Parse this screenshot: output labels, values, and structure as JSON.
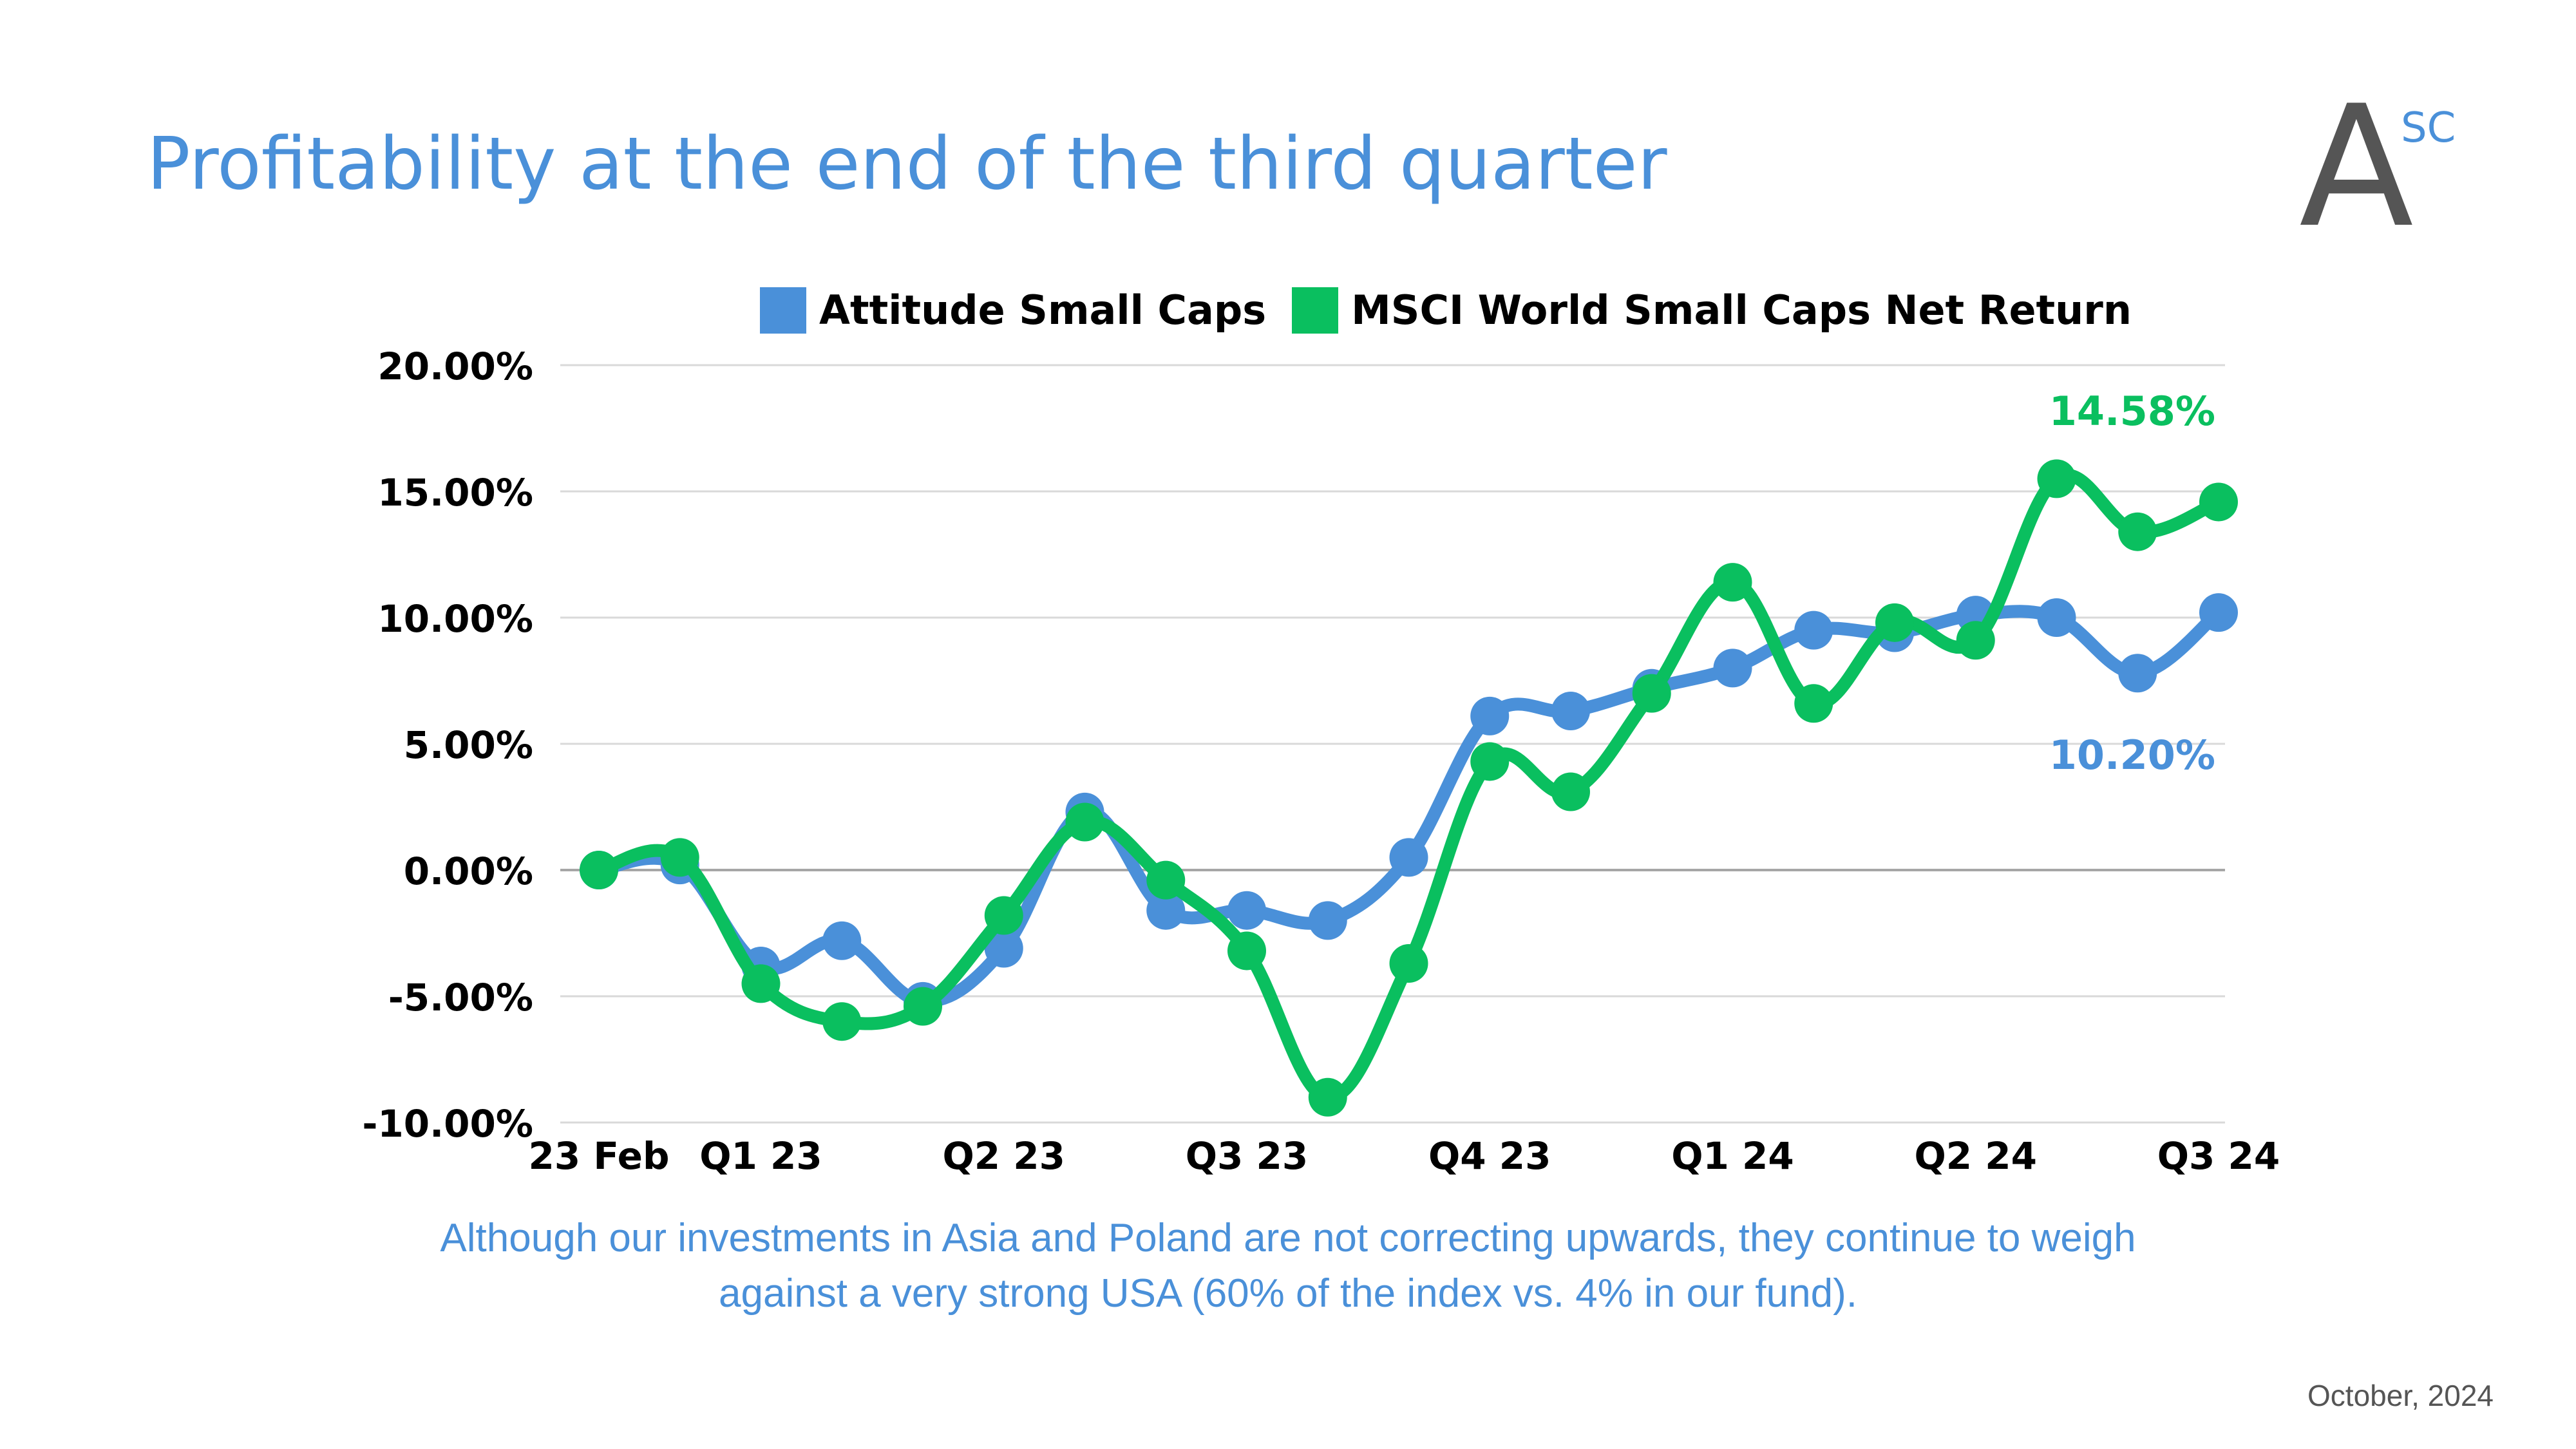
{
  "header": {
    "title": "Profitability at the end of the third quarter",
    "logo_main": "A",
    "logo_sup": "SC"
  },
  "footnote": "Although our investments in Asia and Poland are not correcting upwards, they continue to weigh against a very strong USA (60% of the index vs. 4% in our fund).",
  "date": "October, 2024",
  "colors": {
    "accent": "#4a90d9",
    "series1": "#4a90d9",
    "series2": "#0abf5f",
    "grid": "#d9d9d9",
    "zero": "#a6a6a6"
  },
  "chart_data": {
    "type": "line",
    "legend": "top",
    "x_tick_labels": [
      "23 Feb",
      "Q1 23",
      "Q2 23",
      "Q3 23",
      "Q4 23",
      "Q1 24",
      "Q2 24",
      "Q3 24"
    ],
    "x_tick_positions": [
      0,
      2,
      5,
      8,
      11,
      14,
      17,
      20
    ],
    "y_tick_labels": [
      "20.00%",
      "15.00%",
      "10.00%",
      "5.00%",
      "0.00%",
      "-5.00%",
      "-10.00%"
    ],
    "ylim": [
      -10,
      20
    ],
    "grid": true,
    "series": [
      {
        "name": "Attitude Small Caps",
        "color": "#4a90d9",
        "values": [
          0.0,
          0.2,
          -3.8,
          -2.8,
          -5.2,
          -3.1,
          2.3,
          -1.6,
          -1.6,
          -2.0,
          0.5,
          6.1,
          6.3,
          7.2,
          8.0,
          9.5,
          9.4,
          10.1,
          10.0,
          7.8,
          10.2
        ],
        "end_label": "10.20%"
      },
      {
        "name": "MSCI World Small Caps Net Return",
        "color": "#0abf5f",
        "values": [
          0.0,
          0.5,
          -4.5,
          -6.0,
          -5.4,
          -1.8,
          1.9,
          -0.4,
          -3.2,
          -9.0,
          -3.7,
          4.3,
          3.1,
          7.0,
          11.4,
          6.6,
          9.8,
          9.1,
          15.5,
          13.4,
          14.58
        ],
        "end_label": "14.58%"
      }
    ]
  }
}
